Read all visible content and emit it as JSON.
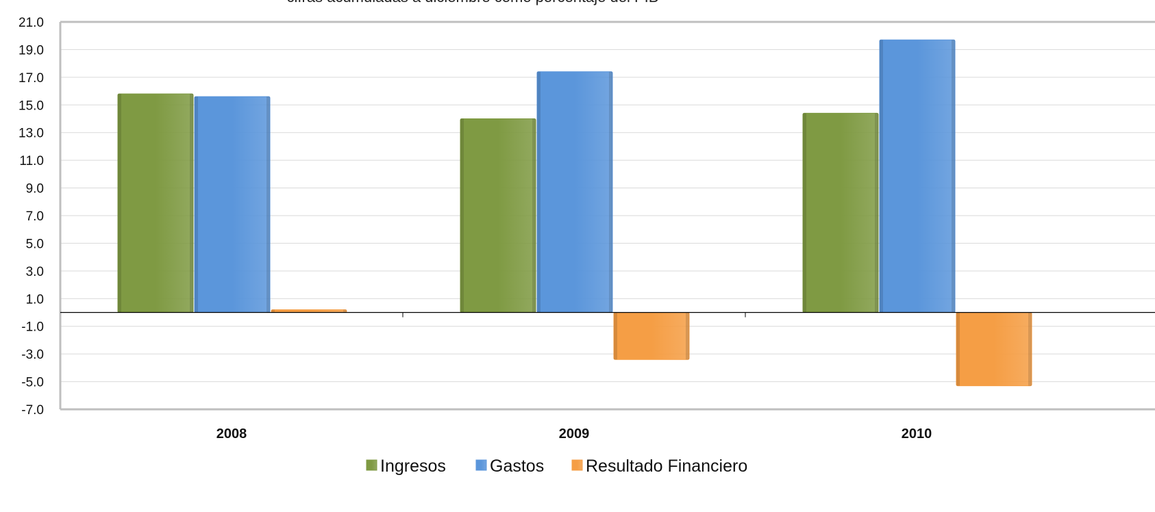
{
  "chart_data": {
    "type": "bar",
    "subtitle": "cifras acumuladas a diciembre como porcentaje del PIB",
    "categories": [
      "2008",
      "2009",
      "2010"
    ],
    "series": [
      {
        "name": "Ingresos",
        "color": "#7F9A43",
        "values": [
          15.8,
          14.0,
          14.4
        ]
      },
      {
        "name": "Gastos",
        "color": "#5B96DB",
        "values": [
          15.6,
          17.4,
          19.7
        ]
      },
      {
        "name": "Resultado Financiero",
        "color": "#F59E45",
        "values": [
          0.2,
          -3.4,
          -5.3
        ]
      }
    ],
    "ylim": [
      -7.0,
      21.0
    ],
    "yticks": [
      "21.0",
      "19.0",
      "17.0",
      "15.0",
      "13.0",
      "11.0",
      "9.0",
      "7.0",
      "5.0",
      "3.0",
      "1.0",
      "-1.0",
      "-3.0",
      "-5.0",
      "-7.0"
    ],
    "grid": true,
    "legend_position": "bottom"
  }
}
